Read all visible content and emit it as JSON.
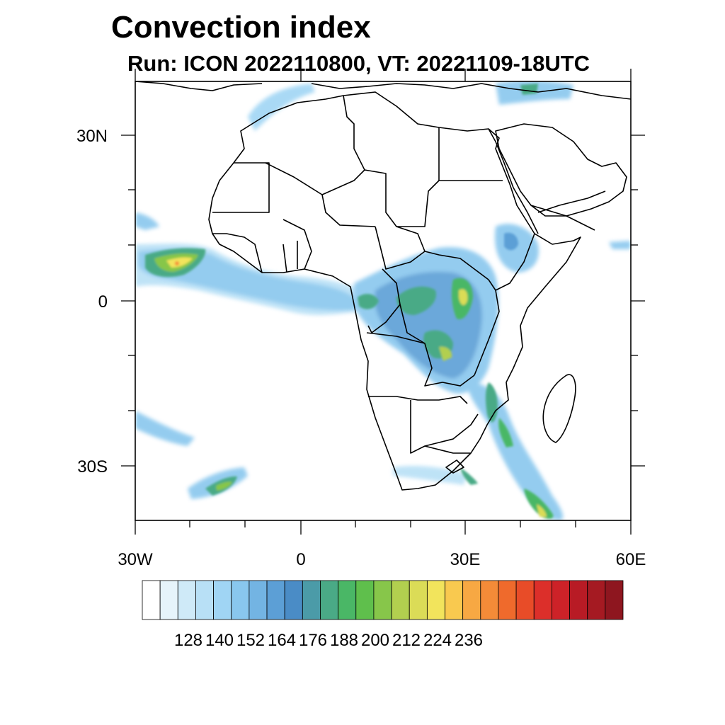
{
  "title": "Convection index",
  "subtitle": "Run: ICON 2022110800,  VT: 20221109-18UTC",
  "axes": {
    "lat_labels": [
      "30N",
      "0",
      "30S"
    ],
    "lon_labels": [
      "30W",
      "0",
      "30E",
      "60E"
    ]
  },
  "colorbar": {
    "tick_labels": [
      "128",
      "140",
      "152",
      "164",
      "176",
      "188",
      "200",
      "212",
      "224",
      "236"
    ],
    "colors": [
      "#ffffff",
      "#e6f4fb",
      "#cfeaf8",
      "#b8e0f6",
      "#a0d5f4",
      "#89c7ee",
      "#73b4e3",
      "#5c9fd6",
      "#4a8cc6",
      "#4b9ba8",
      "#4aaa86",
      "#4ab766",
      "#5fbf4c",
      "#87c64a",
      "#b2cf4f",
      "#dbdc57",
      "#f2e45c",
      "#f9c94f",
      "#f7a843",
      "#f48b38",
      "#ef6a2c",
      "#e84c28",
      "#dc2f2a",
      "#cd2228",
      "#b81b25",
      "#a51a22",
      "#8e161f"
    ]
  }
}
